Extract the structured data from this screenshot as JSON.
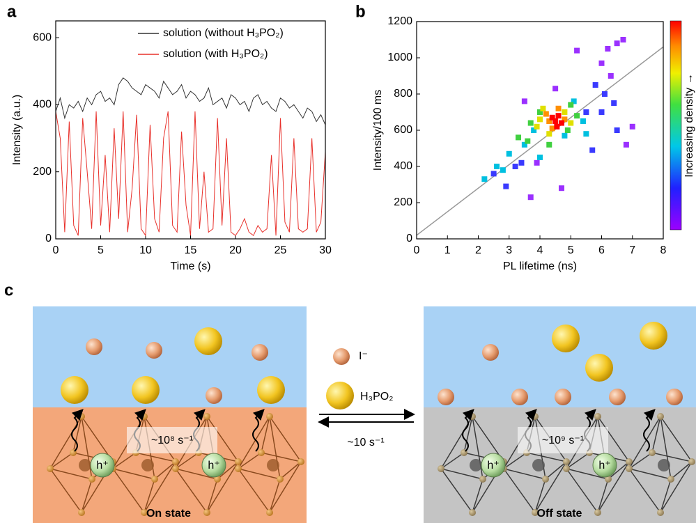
{
  "chart_data": [
    {
      "type": "line",
      "panel_label": "a",
      "xlabel": "Time (s)",
      "ylabel": "Intensity (a.u.)",
      "x": [
        0,
        0.5,
        1,
        1.5,
        2,
        2.5,
        3,
        3.5,
        4,
        4.5,
        5,
        5.5,
        6,
        6.5,
        7,
        7.5,
        8,
        8.5,
        9,
        9.5,
        10,
        10.5,
        11,
        11.5,
        12,
        12.5,
        13,
        13.5,
        14,
        14.5,
        15,
        15.5,
        16,
        16.5,
        17,
        17.5,
        18,
        18.5,
        19,
        19.5,
        20,
        20.5,
        21,
        21.5,
        22,
        22.5,
        23,
        23.5,
        24,
        24.5,
        25,
        25.5,
        26,
        26.5,
        27,
        27.5,
        28,
        28.5,
        29,
        29.5,
        30
      ],
      "series": [
        {
          "name": "solution (without H₃PO₂)",
          "color": "#333333",
          "values": [
            380,
            420,
            360,
            400,
            390,
            410,
            380,
            420,
            400,
            430,
            440,
            410,
            420,
            400,
            460,
            480,
            470,
            450,
            440,
            430,
            460,
            450,
            440,
            420,
            470,
            450,
            430,
            440,
            460,
            420,
            440,
            430,
            410,
            420,
            450,
            400,
            410,
            420,
            390,
            430,
            420,
            400,
            410,
            380,
            420,
            430,
            400,
            410,
            390,
            380,
            420,
            410,
            390,
            400,
            380,
            360,
            390,
            380,
            350,
            370,
            340
          ]
        },
        {
          "name": "solution (with H₃PO₂)",
          "color": "#e8302a",
          "values": [
            380,
            300,
            20,
            350,
            40,
            10,
            360,
            200,
            30,
            380,
            40,
            250,
            20,
            330,
            60,
            380,
            20,
            150,
            370,
            30,
            10,
            340,
            60,
            20,
            300,
            380,
            40,
            20,
            320,
            100,
            10,
            380,
            30,
            200,
            20,
            30,
            360,
            40,
            300,
            20,
            10,
            30,
            60,
            20,
            10,
            40,
            20,
            30,
            250,
            10,
            360,
            50,
            20,
            300,
            30,
            20,
            30,
            300,
            20,
            50,
            260
          ]
        }
      ],
      "xlim": [
        0,
        30
      ],
      "xticks": [
        0,
        5,
        10,
        15,
        20,
        25,
        30
      ],
      "ylim": [
        0,
        650
      ],
      "yticks": [
        0,
        200,
        400,
        600
      ]
    },
    {
      "type": "scatter",
      "panel_label": "b",
      "xlabel": "PL lifetime (ns)",
      "ylabel": "Intensity/100 ms",
      "colorbar_label": "Increasing density →",
      "series": [
        {
          "color": "#9b30ff",
          "x": [
            6.5,
            6.7,
            6.2,
            6.0,
            4.5,
            3.5,
            7.0,
            6.8,
            5.2,
            6.3,
            3.7,
            4.7,
            3.9
          ],
          "values": [
            1080,
            1100,
            1050,
            970,
            830,
            760,
            620,
            520,
            1040,
            900,
            230,
            280,
            420
          ]
        },
        {
          "color": "#3a3aff",
          "x": [
            5.8,
            6.1,
            5.5,
            6.4,
            2.5,
            3.2,
            5.7,
            6.5,
            2.9,
            3.4,
            6.0
          ],
          "values": [
            850,
            800,
            700,
            750,
            360,
            400,
            490,
            600,
            290,
            420,
            700
          ]
        },
        {
          "color": "#00c0e0",
          "x": [
            2.2,
            2.6,
            3.0,
            3.5,
            5.4,
            5.1,
            4.0,
            4.8,
            2.8,
            3.8,
            5.5
          ],
          "values": [
            330,
            400,
            470,
            520,
            650,
            760,
            450,
            570,
            380,
            600,
            580
          ]
        },
        {
          "color": "#40d040",
          "x": [
            3.3,
            3.7,
            4.0,
            5.0,
            4.3,
            4.9,
            3.6,
            5.2
          ],
          "values": [
            560,
            640,
            700,
            740,
            520,
            600,
            540,
            680
          ]
        },
        {
          "color": "#e0e000",
          "x": [
            3.9,
            4.1,
            4.8,
            4.3,
            5.0,
            4.0
          ],
          "values": [
            620,
            720,
            700,
            580,
            640,
            660
          ]
        },
        {
          "color": "#ff9000",
          "x": [
            4.2,
            4.6,
            4.4,
            4.8,
            4.3
          ],
          "values": [
            690,
            720,
            610,
            660,
            650
          ]
        },
        {
          "color": "#ff0000",
          "x": [
            4.5,
            4.6,
            4.4,
            4.7,
            4.55
          ],
          "values": [
            650,
            680,
            670,
            640,
            620
          ]
        }
      ],
      "fit_line": {
        "color": "#999999",
        "x": [
          0,
          8
        ],
        "values": [
          20,
          1060
        ]
      },
      "xlim": [
        0,
        8
      ],
      "xticks": [
        0,
        1,
        2,
        3,
        4,
        5,
        6,
        7,
        8
      ],
      "ylim": [
        0,
        1200
      ],
      "yticks": [
        0,
        200,
        400,
        600,
        800,
        1000,
        1200
      ]
    }
  ],
  "diagram": {
    "panel_label": "c",
    "legend": [
      "I⁻",
      "H₃PO₂"
    ],
    "rate": "~10 s⁻¹",
    "states": [
      {
        "name": "On state",
        "rate": "~10⁸ s⁻¹",
        "hole": "h⁺"
      },
      {
        "name": "Off state",
        "rate": "~10⁹ s⁻¹",
        "hole": "h⁺"
      }
    ]
  }
}
